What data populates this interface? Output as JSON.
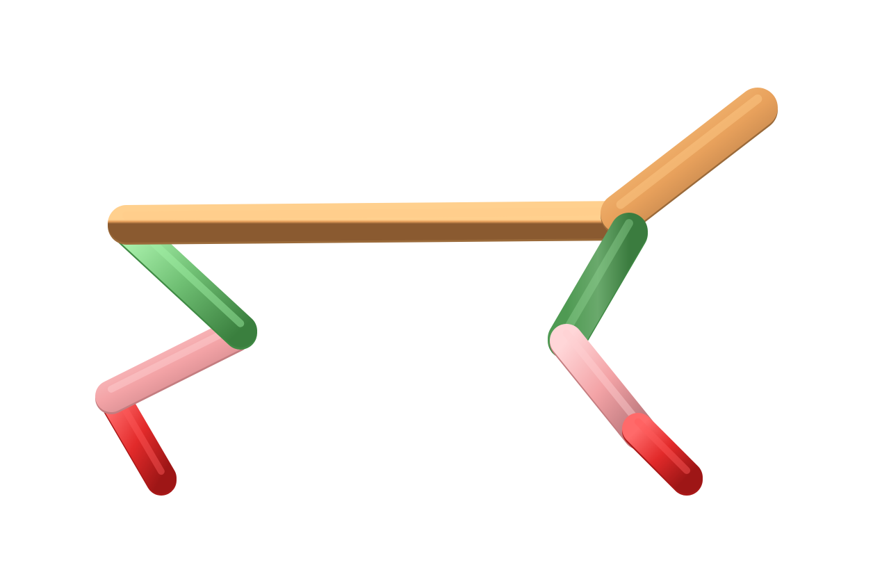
{
  "scene": {
    "background": "#ffffff",
    "representation": "licorice",
    "atoms_color_legend": {
      "carbon_chain": "#e8a15c",
      "carbon_alpha": "#6fbf73",
      "oxygen_alpha": "#f3a3a6",
      "oxygen": "#e22a2a"
    }
  },
  "segments": [
    {
      "name": "bond-left-red",
      "color": "#e22a2a",
      "highlight": "#ff5a5a",
      "shade": "#a81818"
    },
    {
      "name": "bond-left-pink",
      "color": "#f3a3a6",
      "highlight": "#ffd1d3",
      "shade": "#c47d80"
    },
    {
      "name": "bond-left-green",
      "color": "#6fbf73",
      "highlight": "#a5f3a8",
      "shade": "#3f8a44"
    },
    {
      "name": "bond-top-tan",
      "color": "#e8a15c",
      "highlight": "#ffcc8a",
      "shade": "#9a6a3a"
    },
    {
      "name": "bond-upper-right-tan",
      "color": "#e8a15c",
      "highlight": "#ffcc8a",
      "shade": "#9a6a3a"
    },
    {
      "name": "bond-right-green",
      "color": "#6fbf73",
      "highlight": "#8fd190",
      "shade": "#3f8a44"
    },
    {
      "name": "bond-right-pink",
      "color": "#f3a3a6",
      "highlight": "#ffd1d3",
      "shade": "#c47d80"
    },
    {
      "name": "bond-right-red",
      "color": "#e22a2a",
      "highlight": "#ff5a5a",
      "shade": "#a81818"
    }
  ]
}
